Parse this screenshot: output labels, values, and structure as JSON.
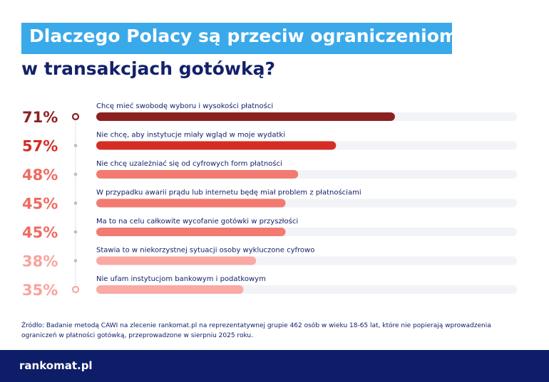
{
  "title_line1": "Dlaczego Polacy są przeciw ograniczeniom",
  "title_line2": "w transakcjach gotówką?",
  "chart_data": {
    "type": "bar",
    "orientation": "horizontal",
    "categories": [
      "Chcę mieć swobodę wyboru i wysokości płatności",
      "Nie chcę, aby instytucje miały wgląd w moje wydatki",
      "Nie chcę uzależniać się od cyfrowych form płatności",
      "W przypadku awarii prądu lub internetu będę miał problem z płatnościami",
      "Ma to na celu całkowite wycofanie gotówki w przyszłości",
      "Stawia to w niekorzystnej sytuacji osoby wykluczone cyfrowo",
      "Nie ufam instytucjom bankowym i podatkowym"
    ],
    "values": [
      71,
      57,
      48,
      45,
      45,
      38,
      35
    ],
    "value_labels": [
      "71%",
      "57%",
      "48%",
      "45%",
      "45%",
      "38%",
      "35%"
    ],
    "xlim": [
      0,
      100
    ],
    "bar_colors": [
      "#8c2121",
      "#d42d25",
      "#f27a70",
      "#f27a70",
      "#f27a70",
      "#f9aaa4",
      "#f9aaa4"
    ],
    "value_label_colors": [
      "#8c2121",
      "#d42d25",
      "#ef6b61",
      "#ef6b61",
      "#ef6b61",
      "#f7a49d",
      "#f7a49d"
    ],
    "track_color": "#f2f3f6",
    "grid": false
  },
  "source_text": "Źródło: Badanie metodą CAWI na zlecenie rankomat.pl na reprezentatywnej grupie 462 osób w wieku 18-65 lat, które nie popierają wprowadzenia ograniczeń w płatności gotówką, przeprowadzone w sierpniu 2025 roku.",
  "logo_text": "rankomat.pl",
  "colors": {
    "title_box": "#3aa9ea",
    "title_dark": "#13216a",
    "footer": "#0d1d68"
  }
}
